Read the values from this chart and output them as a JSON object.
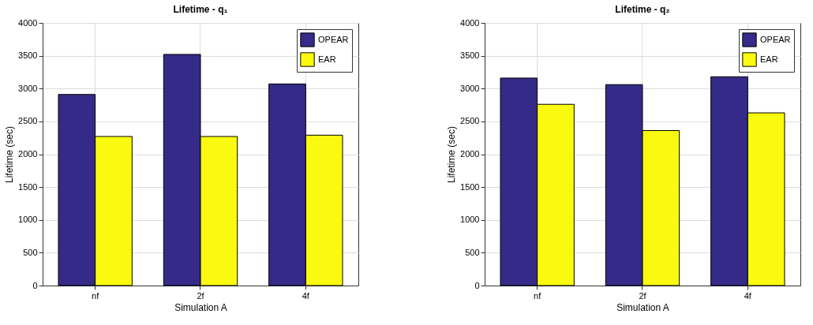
{
  "chart_data": [
    {
      "type": "bar",
      "title": "Lifetime - q₁",
      "xlabel": "Simulation A",
      "ylabel": "Lifetime (sec)",
      "categories": [
        "nf",
        "2f",
        "4f"
      ],
      "series": [
        {
          "name": "OPEAR",
          "color": "#352a87",
          "values": [
            2910,
            3520,
            3070
          ]
        },
        {
          "name": "EAR",
          "color": "#f9fa0f",
          "values": [
            2270,
            2270,
            2290
          ]
        }
      ],
      "ylim": [
        0,
        4000
      ],
      "yticks": [
        0,
        500,
        1000,
        1500,
        2000,
        2500,
        3000,
        3500,
        4000
      ],
      "grid": true,
      "legend": "top right"
    },
    {
      "type": "bar",
      "title": "Lifetime - q₂",
      "xlabel": "Simulation A",
      "ylabel": "Lifetime (sec)",
      "categories": [
        "nf",
        "2f",
        "4f"
      ],
      "series": [
        {
          "name": "OPEAR",
          "color": "#352a87",
          "values": [
            3160,
            3060,
            3180
          ]
        },
        {
          "name": "EAR",
          "color": "#f9fa0f",
          "values": [
            2760,
            2360,
            2630
          ]
        }
      ],
      "ylim": [
        0,
        4000
      ],
      "yticks": [
        0,
        500,
        1000,
        1500,
        2000,
        2500,
        3000,
        3500,
        4000
      ],
      "grid": true,
      "legend": "top right"
    }
  ]
}
